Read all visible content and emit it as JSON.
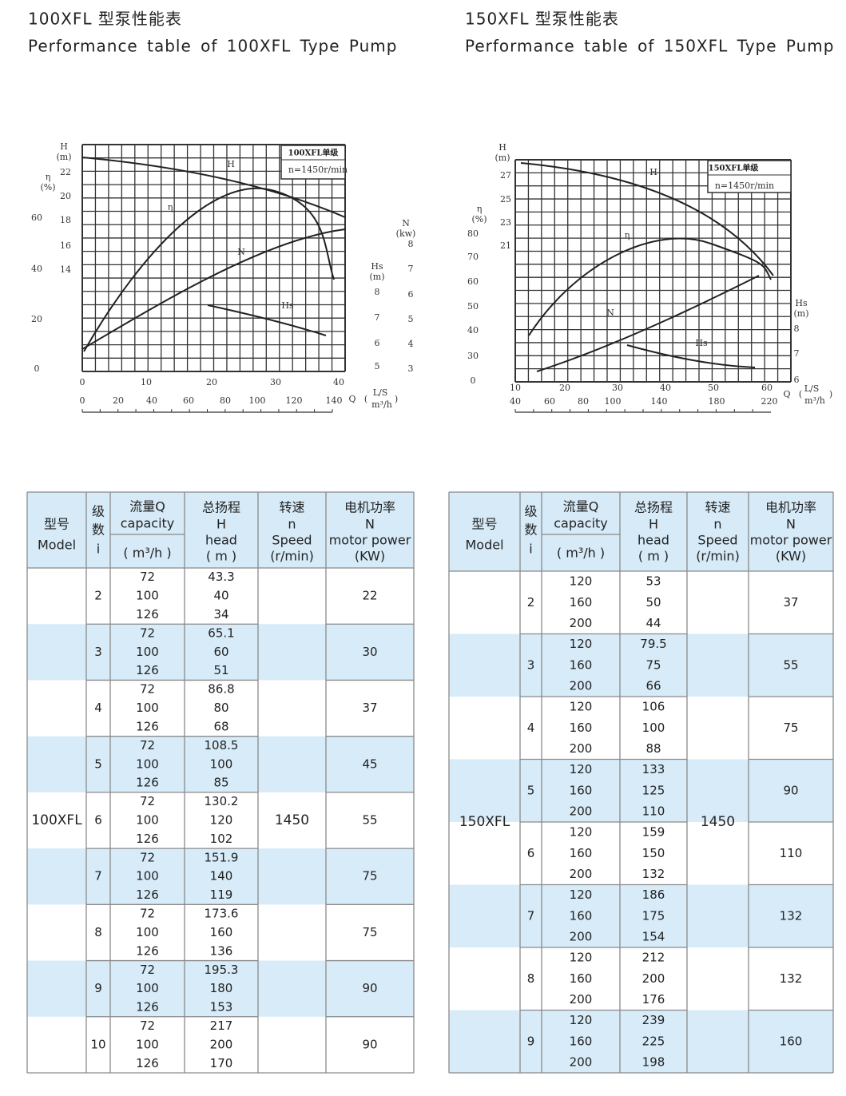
{
  "panels": [
    {
      "title_cn": "100XFL 型泵性能表",
      "title_en": "Performance table of 100XFL Type Pump",
      "diagram": {
        "box_title": "100XFL单级",
        "box_speed": "n=1450r/min",
        "axes": [
          {
            "label": [
              "H",
              "(m)"
            ],
            "ticks": [
              22,
              20,
              18,
              16,
              14
            ]
          },
          {
            "label": [
              "η",
              "(%)"
            ],
            "ticks": [
              60,
              40,
              20,
              0
            ]
          },
          {
            "label": [
              "N",
              "(kw)"
            ],
            "ticks": [
              8,
              7,
              6,
              5,
              4,
              3
            ]
          },
          {
            "label": [
              "Hs",
              "(m)"
            ],
            "ticks": [
              8,
              7,
              6,
              5
            ]
          },
          {
            "label": [
              "L/S"
            ],
            "ticks": [
              0,
              10,
              20,
              30,
              40
            ]
          },
          {
            "label": [
              "m³/h"
            ],
            "ticks": [
              0,
              20,
              40,
              60,
              80,
              100,
              120,
              140
            ]
          }
        ],
        "q_label": "Q",
        "curve_labels": [
          "H",
          "η",
          "N",
          "Hs"
        ]
      },
      "table": {
        "headers": [
          [
            "型号",
            "Model"
          ],
          [
            "级",
            "数",
            "i"
          ],
          [
            "流量Q",
            "capacity",
            "( m³/h )"
          ],
          [
            "总扬程",
            "H",
            "head",
            "( m )"
          ],
          [
            "转速",
            "n",
            "Speed",
            "(r/min)"
          ],
          [
            "电机功率",
            "N",
            "motor power",
            "(KW)"
          ]
        ],
        "model": "100XFL",
        "speed": 1450,
        "rows": [
          {
            "stage": 2,
            "q": [
              72,
              100,
              126
            ],
            "h": [
              43.3,
              40,
              34
            ],
            "power": 22
          },
          {
            "stage": 3,
            "q": [
              72,
              100,
              126
            ],
            "h": [
              65.1,
              60,
              51
            ],
            "power": 30
          },
          {
            "stage": 4,
            "q": [
              72,
              100,
              126
            ],
            "h": [
              86.8,
              80,
              68
            ],
            "power": 37
          },
          {
            "stage": 5,
            "q": [
              72,
              100,
              126
            ],
            "h": [
              108.5,
              100,
              85
            ],
            "power": 45
          },
          {
            "stage": 6,
            "q": [
              72,
              100,
              126
            ],
            "h": [
              130.2,
              120,
              102
            ],
            "power": 55
          },
          {
            "stage": 7,
            "q": [
              72,
              100,
              126
            ],
            "h": [
              151.9,
              140,
              119
            ],
            "power": 75
          },
          {
            "stage": 8,
            "q": [
              72,
              100,
              126
            ],
            "h": [
              173.6,
              160,
              136
            ],
            "power": 75
          },
          {
            "stage": 9,
            "q": [
              72,
              100,
              126
            ],
            "h": [
              195.3,
              180,
              153
            ],
            "power": 90
          },
          {
            "stage": 10,
            "q": [
              72,
              100,
              126
            ],
            "h": [
              217,
              200,
              170
            ],
            "power": 90
          }
        ]
      }
    },
    {
      "title_cn": "150XFL 型泵性能表",
      "title_en": "Performance table of 150XFL Type Pump",
      "diagram": {
        "box_title": "150XFL单级",
        "box_speed": "n=1450r/min",
        "axes": [
          {
            "label": [
              "H",
              "(m)"
            ],
            "ticks": [
              27,
              25,
              23,
              21
            ]
          },
          {
            "label": [
              "η",
              "(%)"
            ],
            "ticks": [
              80,
              70,
              60,
              50,
              40,
              30,
              0
            ]
          },
          {
            "label": [
              "Hs",
              "(m)"
            ],
            "ticks": [
              8,
              7,
              6
            ]
          },
          {
            "label": [
              "L/S"
            ],
            "ticks": [
              10,
              20,
              30,
              40,
              50,
              60
            ]
          },
          {
            "label": [
              "m³/h"
            ],
            "ticks": [
              40,
              60,
              80,
              100,
              140,
              180,
              220
            ]
          }
        ],
        "q_label": "Q",
        "curve_labels": [
          "H",
          "η",
          "N",
          "Hs"
        ]
      },
      "table": {
        "headers": [
          [
            "型号",
            "Model"
          ],
          [
            "级",
            "数",
            "i"
          ],
          [
            "流量Q",
            "capacity",
            "( m³/h )"
          ],
          [
            "总扬程",
            "H",
            "head",
            "( m )"
          ],
          [
            "转速",
            "n",
            "Speed",
            "(r/min)"
          ],
          [
            "电机功率",
            "N",
            "motor power",
            "(KW)"
          ]
        ],
        "model": "150XFL",
        "speed": 1450,
        "rows": [
          {
            "stage": 2,
            "q": [
              120,
              160,
              200
            ],
            "h": [
              53,
              50,
              44
            ],
            "power": 37
          },
          {
            "stage": 3,
            "q": [
              120,
              160,
              200
            ],
            "h": [
              79.5,
              75,
              66
            ],
            "power": 55
          },
          {
            "stage": 4,
            "q": [
              120,
              160,
              200
            ],
            "h": [
              106,
              100,
              88
            ],
            "power": 75
          },
          {
            "stage": 5,
            "q": [
              120,
              160,
              200
            ],
            "h": [
              133,
              125,
              110
            ],
            "power": 90
          },
          {
            "stage": 6,
            "q": [
              120,
              160,
              200
            ],
            "h": [
              159,
              150,
              132
            ],
            "power": 110
          },
          {
            "stage": 7,
            "q": [
              120,
              160,
              200
            ],
            "h": [
              186,
              175,
              154
            ],
            "power": 132
          },
          {
            "stage": 8,
            "q": [
              120,
              160,
              200
            ],
            "h": [
              212,
              200,
              176
            ],
            "power": 132
          },
          {
            "stage": 9,
            "q": [
              120,
              160,
              200
            ],
            "h": [
              239,
              225,
              198
            ],
            "power": 160
          }
        ]
      }
    }
  ]
}
